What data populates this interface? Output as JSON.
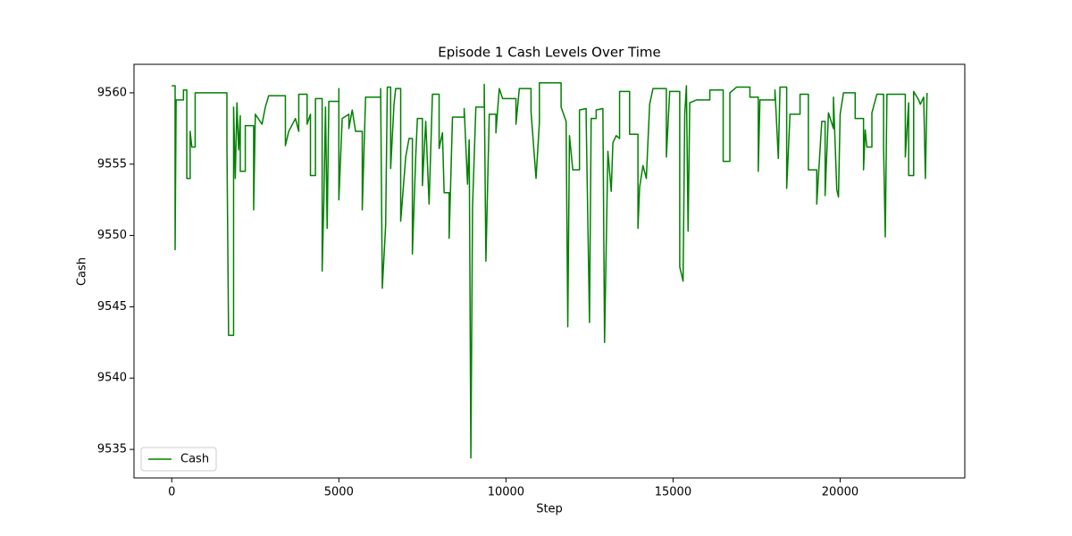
{
  "chart_data": {
    "type": "line",
    "title": "Episode 1 Cash Levels Over Time",
    "xlabel": "Step",
    "ylabel": "Cash",
    "x": [
      0,
      100,
      100,
      130,
      350,
      350,
      450,
      450,
      550,
      550,
      600,
      700,
      700,
      1650,
      1650,
      1700,
      1850,
      1850,
      1900,
      1950,
      2000,
      2050,
      2050,
      2200,
      2200,
      2450,
      2450,
      2500,
      2700,
      2800,
      2900,
      3400,
      3400,
      3500,
      3700,
      3800,
      3800,
      4050,
      4050,
      4150,
      4150,
      4300,
      4300,
      4500,
      4500,
      4550,
      4600,
      4650,
      4700,
      5000,
      5000,
      5000,
      5100,
      5300,
      5300,
      5400,
      5500,
      5700,
      5700,
      5800,
      6250,
      6250,
      6300,
      6400,
      6450,
      6550,
      6550,
      6650,
      6700,
      6850,
      6850,
      7000,
      7100,
      7200,
      7200,
      7300,
      7350,
      7500,
      7500,
      7600,
      7700,
      7800,
      8000,
      8000,
      8100,
      8150,
      8300,
      8300,
      8400,
      8750,
      8750,
      8850,
      8900,
      8950,
      9000,
      9100,
      9350,
      9350,
      9400,
      9500,
      9700,
      9700,
      9800,
      9900,
      10300,
      10300,
      10400,
      10750,
      10750,
      10900,
      11000,
      11000,
      11650,
      11650,
      11800,
      11850,
      11900,
      12000,
      12200,
      12200,
      12400,
      12400,
      12500,
      12550,
      12700,
      12700,
      12900,
      12950,
      13050,
      13150,
      13200,
      13300,
      13400,
      13400,
      13700,
      13700,
      13950,
      13950,
      14000,
      14100,
      14200,
      14300,
      14400,
      14800,
      14800,
      14900,
      15200,
      15200,
      15300,
      15350,
      15400,
      15450,
      15500,
      15700,
      16100,
      16100,
      16500,
      16500,
      16700,
      16700,
      16900,
      17300,
      17300,
      17550,
      17550,
      17600,
      18050,
      18050,
      18150,
      18200,
      18400,
      18400,
      18500,
      18800,
      18800,
      19050,
      19050,
      19300,
      19300,
      19450,
      19550,
      19550,
      19650,
      19800,
      19800,
      19900,
      19950,
      20000,
      20100,
      20450,
      20450,
      20700,
      20700,
      20750,
      20800,
      20950,
      20950,
      21100,
      21300,
      21300,
      21350,
      21400,
      21950,
      21950,
      22050,
      22050,
      22200,
      22200,
      22350,
      22400,
      22500,
      22550,
      22600
    ],
    "series": [
      {
        "name": "Cash",
        "color": "#008000",
        "values": [
          9560.5,
          9560.5,
          9549,
          9559.5,
          9559.5,
          9560.2,
          9560.2,
          9554,
          9554,
          9557.3,
          9556.2,
          9556.2,
          9560,
          9560,
          9556.5,
          9543,
          9543,
          9559,
          9554,
          9559.3,
          9556,
          9558.4,
          9554.5,
          9554.5,
          9557.7,
          9557.7,
          9551.8,
          9558.5,
          9557.8,
          9559,
          9559.8,
          9559.8,
          9556.3,
          9557.3,
          9558.2,
          9557.3,
          9559.9,
          9559.9,
          9557.8,
          9558.5,
          9554.2,
          9554.2,
          9559.6,
          9559.6,
          9547.5,
          9552.3,
          9559,
          9550.5,
          9559.4,
          9559.4,
          9560.3,
          9552.5,
          9558.2,
          9558.5,
          9557.5,
          9558.8,
          9557.3,
          9557.3,
          9551.8,
          9559.7,
          9559.7,
          9560.3,
          9546.3,
          9550.7,
          9560.4,
          9560.4,
          9554.7,
          9559.2,
          9560.3,
          9560.3,
          9551,
          9555.5,
          9556.8,
          9556.8,
          9548.7,
          9555.5,
          9558.2,
          9558.2,
          9553.5,
          9558,
          9552.2,
          9559.9,
          9559.9,
          9556.1,
          9557.2,
          9553,
          9553,
          9549.8,
          9558.3,
          9558.3,
          9558.9,
          9553.6,
          9556.7,
          9534.4,
          9552,
          9559,
          9559,
          9560.6,
          9548.2,
          9558.5,
          9558.5,
          9557.2,
          9560.3,
          9559.6,
          9559.6,
          9557.8,
          9560.3,
          9560.3,
          9558.7,
          9554,
          9557.9,
          9560.7,
          9560.7,
          9559,
          9558,
          9543.6,
          9557,
          9554.6,
          9554.6,
          9558.8,
          9558.9,
          9558.2,
          9543.9,
          9558.2,
          9558.2,
          9558.8,
          9558.9,
          9542.5,
          9555.9,
          9553.1,
          9556.5,
          9557,
          9556.8,
          9560.1,
          9560.1,
          9557.1,
          9557.1,
          9550.5,
          9553.4,
          9554.9,
          9554,
          9559.2,
          9560.3,
          9560.3,
          9555.5,
          9560.1,
          9560.1,
          9547.8,
          9546.8,
          9558.5,
          9560.5,
          9550.3,
          9559.3,
          9559.5,
          9559.5,
          9560.2,
          9560.2,
          9555.2,
          9555.2,
          9560,
          9560.4,
          9560.4,
          9559.7,
          9559.7,
          9554.5,
          9559.5,
          9559.5,
          9560.2,
          9555.4,
          9560.4,
          9560.4,
          9553.3,
          9558.5,
          9558.5,
          9559.9,
          9559.9,
          9554.6,
          9554.6,
          9552.2,
          9558,
          9558,
          9552.8,
          9558.6,
          9557.5,
          9559.7,
          9553.2,
          9552.7,
          9558.5,
          9560,
          9560,
          9558.2,
          9558.2,
          9554.6,
          9557.4,
          9556.2,
          9556.2,
          9558.6,
          9559.9,
          9559.9,
          9556.2,
          9549.9,
          9559.9,
          9559.9,
          9555.5,
          9559.3,
          9554.2,
          9554.2,
          9560.1,
          9559.5,
          9559.2,
          9559.7,
          9554,
          9560
        ]
      }
    ],
    "xlim": [
      -1130,
      23730
    ],
    "xticks": [
      0,
      5000,
      10000,
      15000,
      20000
    ],
    "ylim": [
      9533,
      9562
    ],
    "yticks": [
      9535,
      9540,
      9545,
      9550,
      9555,
      9560
    ],
    "legend": "lower left"
  }
}
